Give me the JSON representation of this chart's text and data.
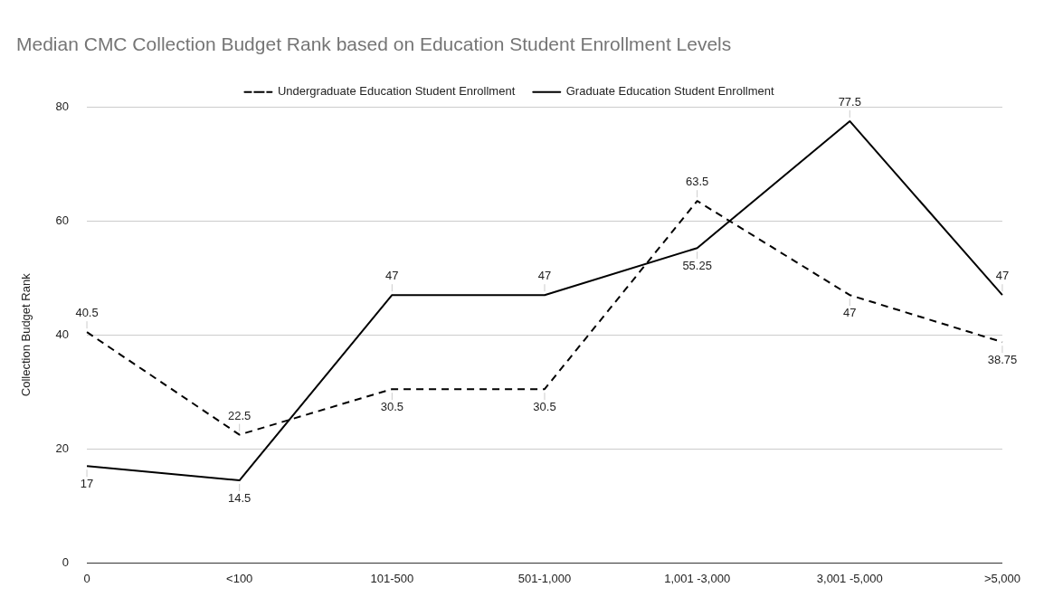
{
  "chart_data": {
    "type": "line",
    "title": "Median CMC Collection Budget Rank based on Education Student Enrollment Levels",
    "ylabel": "Collection Budget Rank",
    "categories": [
      "0",
      "<100",
      "101-500",
      "501-1,000",
      "1,001 -3,000",
      "3,001 -5,000",
      ">5,000"
    ],
    "series": [
      {
        "name": "Undergraduate Education Student Enrollment",
        "color": "#000000",
        "line_style": "dashed",
        "values": [
          40.5,
          22.5,
          30.5,
          30.5,
          63.5,
          47,
          38.75
        ]
      },
      {
        "name": "Graduate Education Student Enrollment",
        "color": "#000000",
        "line_style": "solid",
        "values": [
          17,
          14.5,
          47,
          47,
          55.25,
          77.5,
          47
        ]
      }
    ],
    "ylim": [
      0,
      80
    ],
    "yticks": [
      0,
      20,
      40,
      60,
      80
    ],
    "grid": "y",
    "legend": "top",
    "marker": "none",
    "data_labels": true
  }
}
